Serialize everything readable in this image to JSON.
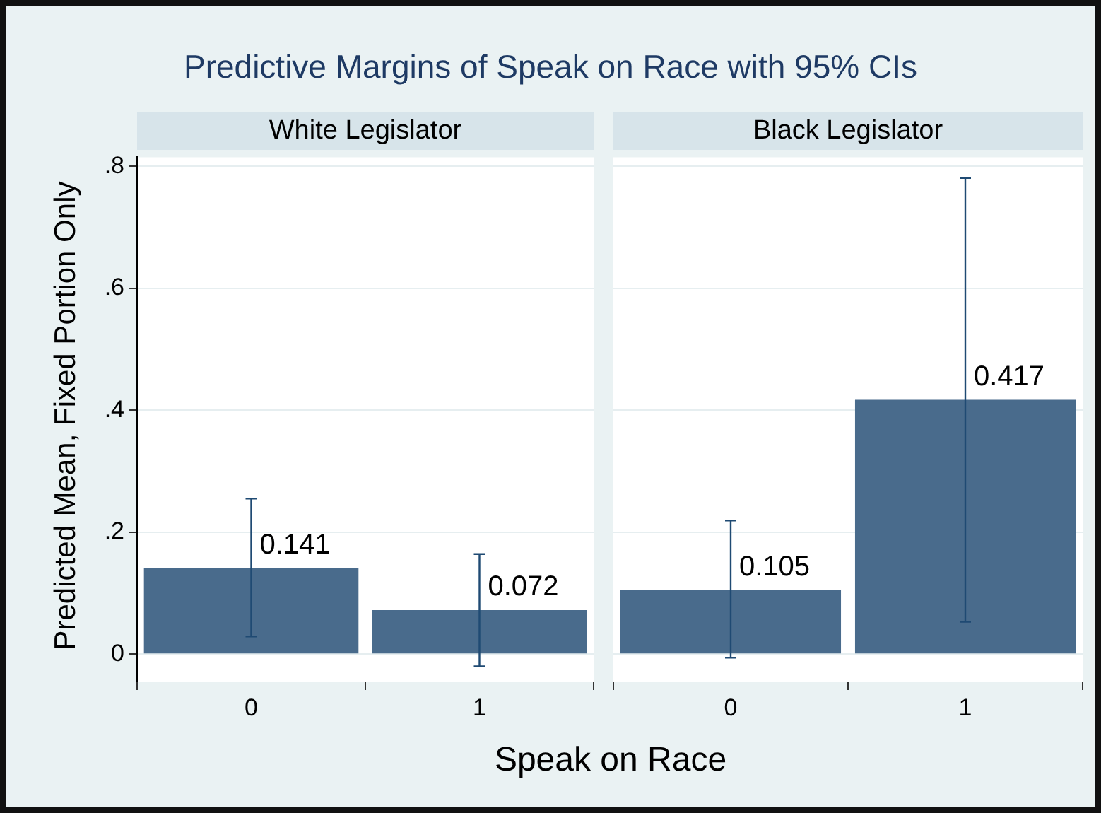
{
  "chart_data": [
    {
      "type": "bar",
      "title": "Predictive Margins of Speak on Race with 95% CIs",
      "subtitle": "White Legislator",
      "xlabel": "Speak on Race",
      "ylabel": "Predicted Mean, Fixed Portion Only",
      "categories": [
        "0",
        "1"
      ],
      "values": [
        0.141,
        0.072
      ],
      "color": "#496b8c",
      "errors": [
        [
          0.029,
          0.255
        ],
        [
          -0.02,
          0.164
        ]
      ],
      "data_labels": true,
      "ylim": [
        -0.045,
        0.815
      ],
      "yticks": [
        {
          "value": 0,
          "label": "0"
        },
        {
          "value": 0.2,
          "label": ".2"
        },
        {
          "value": 0.4,
          "label": ".4"
        },
        {
          "value": 0.6,
          "label": ".6"
        },
        {
          "value": 0.8,
          "label": ".8"
        }
      ],
      "grid": "y"
    },
    {
      "type": "bar",
      "subtitle": "Black Legislator",
      "categories": [
        "0",
        "1"
      ],
      "values": [
        0.105,
        0.417
      ],
      "color": "#496b8c",
      "errors": [
        [
          -0.006,
          0.219
        ],
        [
          0.053,
          0.781
        ]
      ],
      "data_labels": true,
      "ylim": [
        -0.045,
        0.815
      ],
      "yticks": [
        0,
        0.2,
        0.4,
        0.6,
        0.8
      ],
      "grid": "y",
      "tick_labels": "x"
    }
  ]
}
